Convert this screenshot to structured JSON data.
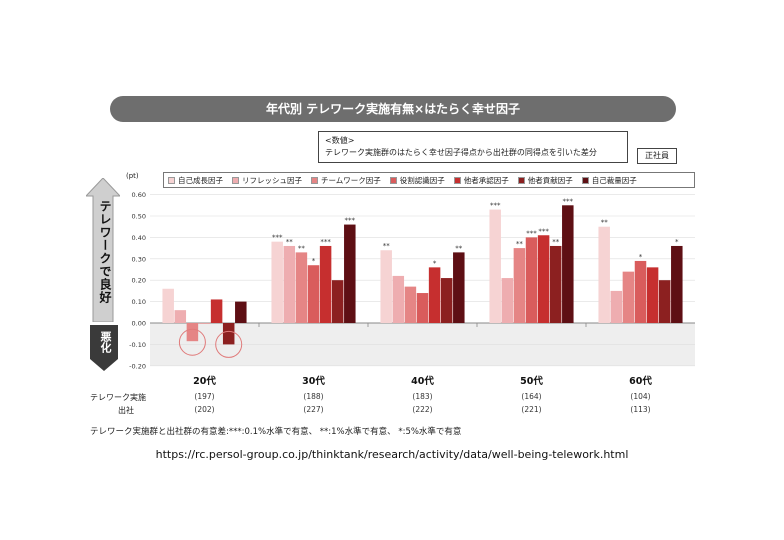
{
  "chart_data": {
    "type": "bar",
    "title": "年代別 テレワーク実施有無×はたらく幸せ因子",
    "note_title": "<数値>",
    "note_text": "テレワーク実施群のはたらく幸せ因子得点から出社群の同得点を引いた差分",
    "badge": "正社員",
    "unit": "(pt)",
    "side_good": "テレワークで良好",
    "side_bad": "悪化",
    "ylim": [
      -0.2,
      0.6
    ],
    "yticks": [
      "0.60",
      "0.50",
      "0.40",
      "0.30",
      "0.20",
      "0.10",
      "0.00",
      "-0.10",
      "-0.20"
    ],
    "ytick_values": [
      0.6,
      0.5,
      0.4,
      0.3,
      0.2,
      0.1,
      0.0,
      -0.1,
      -0.2
    ],
    "grid": true,
    "legend_placement": "top",
    "categories": [
      "20代",
      "30代",
      "40代",
      "50代",
      "60代"
    ],
    "series": [
      {
        "name": "自己成長因子",
        "color": "#f6d3d3",
        "values": [
          0.16,
          0.38,
          0.34,
          0.53,
          0.45
        ],
        "sig": [
          "",
          "***",
          "**",
          "***",
          "**"
        ]
      },
      {
        "name": "リフレッシュ因子",
        "color": "#eeadb0",
        "values": [
          0.06,
          0.36,
          0.22,
          0.21,
          0.15
        ],
        "sig": [
          "",
          "**",
          "",
          "",
          ""
        ]
      },
      {
        "name": "チームワーク因子",
        "color": "#e58585",
        "values": [
          -0.085,
          0.33,
          0.17,
          0.35,
          0.24
        ],
        "sig": [
          "",
          "**",
          "",
          "**",
          ""
        ]
      },
      {
        "name": "役割認識因子",
        "color": "#d95c5c",
        "values": [
          0.0,
          0.27,
          0.14,
          0.4,
          0.29
        ],
        "sig": [
          "",
          "*",
          "",
          "***",
          "*"
        ]
      },
      {
        "name": "他者承認因子",
        "color": "#c62f2f",
        "values": [
          0.11,
          0.36,
          0.26,
          0.41,
          0.26
        ],
        "sig": [
          "",
          "***",
          "*",
          "***",
          ""
        ]
      },
      {
        "name": "他者貢献因子",
        "color": "#8c2020",
        "values": [
          -0.1,
          0.2,
          0.21,
          0.36,
          0.2
        ],
        "sig": [
          "",
          "",
          "",
          "**",
          ""
        ]
      },
      {
        "name": "自己裁量因子",
        "color": "#5e0f14",
        "values": [
          0.1,
          0.46,
          0.33,
          0.55,
          0.36
        ],
        "sig": [
          "",
          "***",
          "**",
          "***",
          "*"
        ]
      }
    ],
    "row_labels": [
      "テレワーク実施",
      "出社"
    ],
    "n_telework": [
      "(197)",
      "(188)",
      "(183)",
      "(164)",
      "(104)"
    ],
    "n_office": [
      "(202)",
      "(227)",
      "(222)",
      "(221)",
      "(113)"
    ],
    "footnote": "テレワーク実施群と出社群の有意差:***:0.1%水準で有意、 **:1%水準で有意、 *:5%水準で有意",
    "source_url": "https://rc.persol-group.co.jp/thinktank/research/activity/data/well-being-telework.html"
  }
}
